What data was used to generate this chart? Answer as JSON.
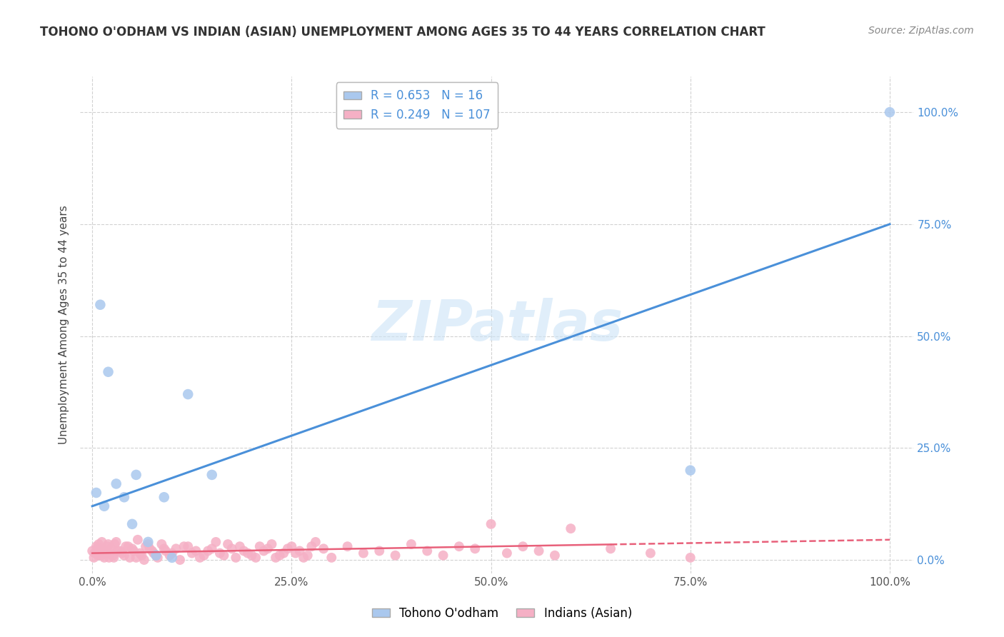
{
  "title": "TOHONO O'ODHAM VS INDIAN (ASIAN) UNEMPLOYMENT AMONG AGES 35 TO 44 YEARS CORRELATION CHART",
  "source": "Source: ZipAtlas.com",
  "ylabel": "Unemployment Among Ages 35 to 44 years",
  "xticks": [
    0,
    25,
    50,
    75,
    100
  ],
  "yticks": [
    0,
    25,
    50,
    75,
    100
  ],
  "xticklabels": [
    "0.0%",
    "25.0%",
    "50.0%",
    "75.0%",
    "100.0%"
  ],
  "yticklabels": [
    "0.0%",
    "25.0%",
    "50.0%",
    "75.0%",
    "100.0%"
  ],
  "blue_R": 0.653,
  "blue_N": 16,
  "pink_R": 0.249,
  "pink_N": 107,
  "blue_color": "#aac8ee",
  "pink_color": "#f5b0c5",
  "blue_line_color": "#4a90d9",
  "pink_line_color": "#e8607a",
  "right_tick_color": "#4a90d9",
  "grid_color": "#cccccc",
  "background_color": "#ffffff",
  "blue_scatter_x": [
    1.0,
    2.0,
    3.0,
    4.0,
    5.0,
    5.5,
    7.0,
    8.0,
    9.0,
    10.0,
    12.0,
    15.0,
    75.0,
    100.0,
    0.5,
    1.5
  ],
  "blue_scatter_y": [
    57.0,
    42.0,
    17.0,
    14.0,
    8.0,
    19.0,
    4.0,
    1.0,
    14.0,
    0.5,
    37.0,
    19.0,
    20.0,
    100.0,
    15.0,
    12.0
  ],
  "pink_scatter_x": [
    0.0,
    0.3,
    0.5,
    0.7,
    1.0,
    1.2,
    1.5,
    1.8,
    2.0,
    2.3,
    2.7,
    3.0,
    3.5,
    4.0,
    4.5,
    5.0,
    5.5,
    6.0,
    6.5,
    7.0,
    7.5,
    8.0,
    9.0,
    10.0,
    11.0,
    12.0,
    13.0,
    14.0,
    15.0,
    16.0,
    17.0,
    18.0,
    19.0,
    20.0,
    21.0,
    22.0,
    23.0,
    24.0,
    25.0,
    26.0,
    27.0,
    28.0,
    29.0,
    30.0,
    32.0,
    34.0,
    36.0,
    38.0,
    40.0,
    42.0,
    44.0,
    46.0,
    48.0,
    50.0,
    52.0,
    54.0,
    56.0,
    58.0,
    60.0,
    65.0,
    70.0,
    75.0,
    0.2,
    0.4,
    0.6,
    0.8,
    1.1,
    1.3,
    1.6,
    1.9,
    2.1,
    2.4,
    2.6,
    2.8,
    3.2,
    3.7,
    4.2,
    4.7,
    5.2,
    5.7,
    6.2,
    6.7,
    7.2,
    7.7,
    8.2,
    8.7,
    9.2,
    9.7,
    10.5,
    11.5,
    12.5,
    13.5,
    14.5,
    15.5,
    16.5,
    17.5,
    18.5,
    19.5,
    20.5,
    21.5,
    22.5,
    23.5,
    24.5,
    25.5,
    26.5,
    27.5
  ],
  "pink_scatter_y": [
    2.0,
    1.5,
    3.0,
    1.0,
    2.5,
    4.0,
    0.5,
    2.0,
    3.5,
    1.5,
    0.5,
    4.0,
    2.0,
    1.0,
    3.0,
    2.5,
    0.5,
    1.5,
    0.0,
    3.5,
    2.0,
    1.0,
    2.5,
    1.5,
    0.0,
    3.0,
    2.0,
    1.0,
    2.5,
    1.5,
    3.5,
    0.5,
    2.0,
    1.0,
    3.0,
    2.5,
    0.5,
    1.5,
    3.0,
    2.0,
    1.0,
    4.0,
    2.5,
    0.5,
    3.0,
    1.5,
    2.0,
    1.0,
    3.5,
    2.0,
    1.0,
    3.0,
    2.5,
    8.0,
    1.5,
    3.0,
    2.0,
    1.0,
    7.0,
    2.5,
    1.5,
    0.5,
    0.5,
    1.5,
    2.5,
    3.5,
    1.0,
    2.0,
    1.5,
    3.0,
    0.5,
    2.5,
    1.0,
    3.5,
    2.0,
    1.5,
    3.0,
    0.5,
    2.0,
    4.5,
    1.0,
    3.0,
    2.5,
    1.5,
    0.5,
    3.5,
    2.0,
    1.0,
    2.5,
    3.0,
    1.5,
    0.5,
    2.0,
    4.0,
    1.0,
    2.5,
    3.0,
    1.5,
    0.5,
    2.0,
    3.5,
    1.0,
    2.5,
    1.5,
    0.5,
    3.0
  ],
  "blue_line_x": [
    0,
    100
  ],
  "blue_line_y": [
    12.0,
    75.0
  ],
  "pink_line_x": [
    0,
    100
  ],
  "pink_line_y": [
    1.5,
    4.5
  ],
  "title_fontsize": 12,
  "axis_label_fontsize": 11,
  "tick_fontsize": 11,
  "source_fontsize": 10,
  "legend_fontsize": 12
}
